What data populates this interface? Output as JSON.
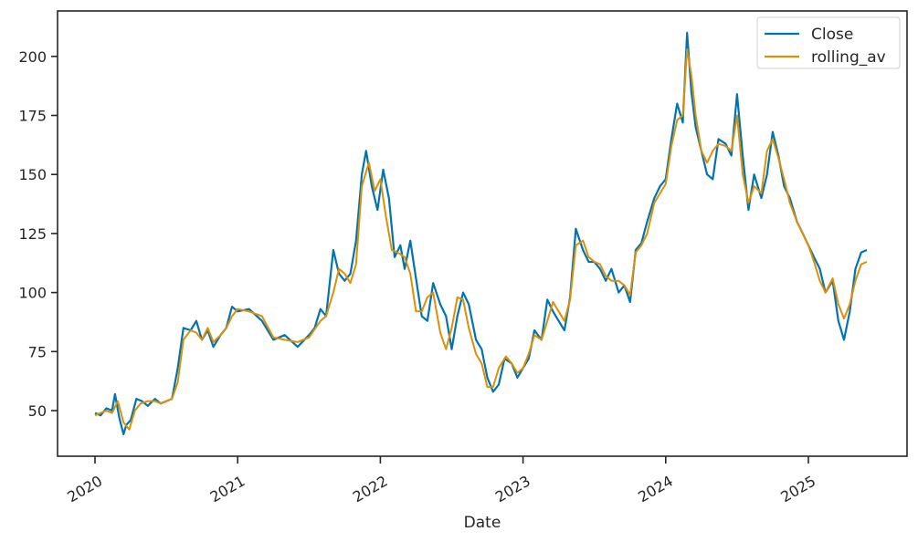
{
  "chart_data": {
    "type": "line",
    "title": "",
    "xlabel": "Date",
    "ylabel": "",
    "ylim": [
      30,
      220
    ],
    "xlim": [
      2019.74,
      2025.66
    ],
    "grid": false,
    "legend_position": "upper right",
    "x_ticks": [
      "2020",
      "2021",
      "2022",
      "2023",
      "2024",
      "2025"
    ],
    "y_ticks": [
      50,
      75,
      100,
      125,
      150,
      175,
      200
    ],
    "series": [
      {
        "name": "Close",
        "color": "#0173b2",
        "x": [
          2020.0,
          2020.04,
          2020.08,
          2020.12,
          2020.14,
          2020.17,
          2020.2,
          2020.22,
          2020.25,
          2020.29,
          2020.33,
          2020.37,
          2020.42,
          2020.46,
          2020.5,
          2020.54,
          2020.58,
          2020.62,
          2020.67,
          2020.71,
          2020.75,
          2020.79,
          2020.83,
          2020.88,
          2020.92,
          2020.96,
          2021.0,
          2021.08,
          2021.17,
          2021.25,
          2021.33,
          2021.42,
          2021.5,
          2021.54,
          2021.58,
          2021.62,
          2021.67,
          2021.71,
          2021.75,
          2021.79,
          2021.83,
          2021.87,
          2021.9,
          2021.94,
          2021.98,
          2022.02,
          2022.06,
          2022.1,
          2022.14,
          2022.17,
          2022.21,
          2022.25,
          2022.29,
          2022.33,
          2022.37,
          2022.42,
          2022.46,
          2022.5,
          2022.54,
          2022.58,
          2022.62,
          2022.67,
          2022.71,
          2022.75,
          2022.79,
          2022.83,
          2022.87,
          2022.92,
          2022.96,
          2023.0,
          2023.04,
          2023.08,
          2023.13,
          2023.17,
          2023.21,
          2023.25,
          2023.29,
          2023.33,
          2023.37,
          2023.42,
          2023.46,
          2023.5,
          2023.54,
          2023.58,
          2023.62,
          2023.67,
          2023.71,
          2023.75,
          2023.79,
          2023.83,
          2023.87,
          2023.92,
          2023.96,
          2024.0,
          2024.04,
          2024.08,
          2024.12,
          2024.15,
          2024.18,
          2024.21,
          2024.25,
          2024.29,
          2024.33,
          2024.37,
          2024.42,
          2024.46,
          2024.5,
          2024.54,
          2024.58,
          2024.62,
          2024.67,
          2024.71,
          2024.75,
          2024.79,
          2024.83,
          2024.87,
          2024.92,
          2024.96,
          2025.0,
          2025.04,
          2025.08,
          2025.12,
          2025.17,
          2025.21,
          2025.25,
          2025.29,
          2025.33,
          2025.37,
          2025.41
        ],
        "values": [
          49,
          48,
          51,
          50,
          57,
          47,
          40,
          44,
          46,
          55,
          54,
          52,
          55,
          53,
          54,
          55,
          68,
          85,
          84,
          88,
          80,
          84,
          77,
          82,
          85,
          94,
          92,
          93,
          88,
          80,
          82,
          77,
          82,
          85,
          93,
          90,
          118,
          108,
          105,
          108,
          122,
          150,
          160,
          145,
          135,
          152,
          140,
          115,
          120,
          110,
          122,
          106,
          90,
          88,
          104,
          95,
          90,
          76,
          90,
          100,
          95,
          80,
          76,
          64,
          58,
          61,
          72,
          70,
          64,
          68,
          72,
          84,
          80,
          97,
          92,
          88,
          84,
          98,
          127,
          118,
          113,
          113,
          110,
          105,
          110,
          100,
          103,
          96,
          118,
          121,
          130,
          140,
          145,
          148,
          165,
          180,
          172,
          210,
          185,
          170,
          160,
          150,
          148,
          165,
          163,
          158,
          184,
          158,
          135,
          150,
          140,
          150,
          168,
          158,
          145,
          140,
          130,
          125,
          120,
          115,
          110,
          100,
          105,
          88,
          80,
          92,
          110,
          117,
          118
        ]
      },
      {
        "name": "rolling_av",
        "color": "#de8f05",
        "x": [
          2020.0,
          2020.04,
          2020.08,
          2020.12,
          2020.16,
          2020.2,
          2020.24,
          2020.28,
          2020.32,
          2020.37,
          2020.42,
          2020.46,
          2020.5,
          2020.54,
          2020.58,
          2020.62,
          2020.67,
          2020.71,
          2020.75,
          2020.79,
          2020.83,
          2020.88,
          2020.92,
          2020.96,
          2021.0,
          2021.08,
          2021.17,
          2021.25,
          2021.33,
          2021.42,
          2021.5,
          2021.58,
          2021.62,
          2021.67,
          2021.71,
          2021.75,
          2021.79,
          2021.83,
          2021.87,
          2021.92,
          2021.96,
          2022.0,
          2022.04,
          2022.08,
          2022.12,
          2022.17,
          2022.21,
          2022.25,
          2022.29,
          2022.33,
          2022.37,
          2022.42,
          2022.46,
          2022.5,
          2022.54,
          2022.58,
          2022.62,
          2022.67,
          2022.71,
          2022.75,
          2022.79,
          2022.83,
          2022.88,
          2022.92,
          2022.96,
          2023.0,
          2023.04,
          2023.08,
          2023.13,
          2023.17,
          2023.21,
          2023.25,
          2023.29,
          2023.33,
          2023.37,
          2023.42,
          2023.46,
          2023.5,
          2023.54,
          2023.58,
          2023.62,
          2023.67,
          2023.71,
          2023.75,
          2023.79,
          2023.83,
          2023.87,
          2023.92,
          2023.96,
          2024.0,
          2024.04,
          2024.08,
          2024.12,
          2024.15,
          2024.18,
          2024.21,
          2024.25,
          2024.29,
          2024.33,
          2024.37,
          2024.42,
          2024.46,
          2024.5,
          2024.54,
          2024.58,
          2024.62,
          2024.67,
          2024.71,
          2024.75,
          2024.79,
          2024.83,
          2024.87,
          2024.92,
          2024.96,
          2025.0,
          2025.04,
          2025.08,
          2025.12,
          2025.17,
          2025.21,
          2025.25,
          2025.29,
          2025.33,
          2025.37,
          2025.41
        ],
        "values": [
          48,
          49,
          50,
          49,
          54,
          45,
          42,
          50,
          53,
          54,
          54,
          53,
          54,
          55,
          62,
          80,
          84,
          83,
          80,
          85,
          79,
          82,
          85,
          90,
          93,
          92,
          90,
          81,
          80,
          79,
          81,
          88,
          90,
          100,
          110,
          108,
          104,
          112,
          145,
          155,
          143,
          148,
          132,
          118,
          117,
          115,
          108,
          92,
          92,
          98,
          100,
          83,
          76,
          85,
          98,
          97,
          85,
          74,
          70,
          60,
          60,
          68,
          73,
          70,
          66,
          68,
          74,
          82,
          80,
          88,
          96,
          92,
          88,
          97,
          120,
          122,
          115,
          113,
          112,
          107,
          105,
          105,
          103,
          99,
          117,
          120,
          125,
          138,
          142,
          146,
          162,
          173,
          175,
          203,
          192,
          175,
          160,
          155,
          160,
          163,
          162,
          160,
          175,
          150,
          138,
          145,
          142,
          160,
          165,
          157,
          148,
          138,
          130,
          125,
          120,
          113,
          105,
          100,
          106,
          95,
          89,
          95,
          105,
          112,
          113
        ]
      }
    ]
  }
}
